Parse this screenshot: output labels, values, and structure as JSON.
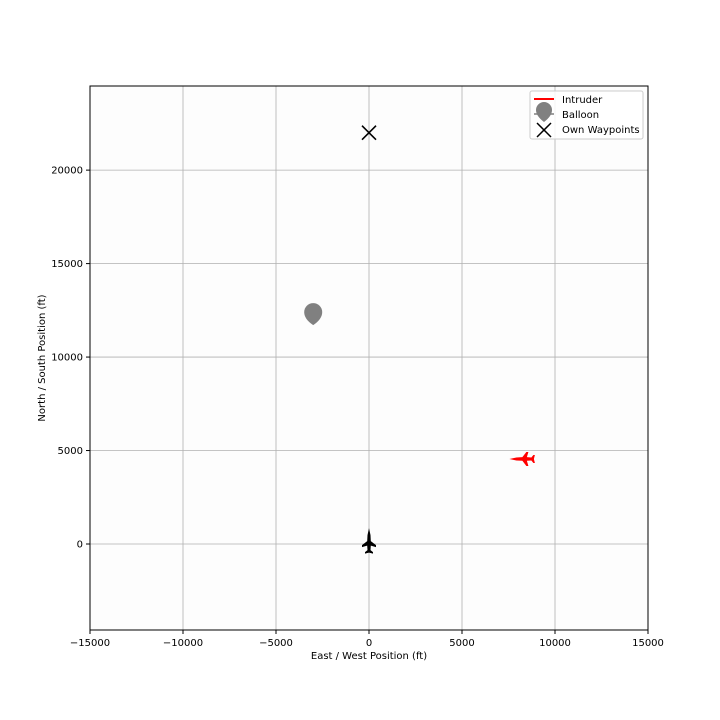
{
  "chart_data": {
    "type": "scatter",
    "title": "",
    "xlabel": "East / West Position (ft)",
    "ylabel": "North / South Position (ft)",
    "xlim": [
      -15000,
      15000
    ],
    "ylim": [
      -4600,
      24500
    ],
    "xticks": [
      -15000,
      -10000,
      -5000,
      0,
      5000,
      10000,
      15000
    ],
    "yticks": [
      0,
      5000,
      10000,
      15000,
      20000
    ],
    "grid": true,
    "legend_position": "top-right",
    "background": "#fdfdfd",
    "series": [
      {
        "name": "Intruder",
        "marker": "aircraft-icon",
        "color": "#ff0000",
        "heading": "west",
        "points": [
          {
            "x": 8300,
            "y": 4550
          }
        ]
      },
      {
        "name": "Balloon",
        "marker": "balloon-icon",
        "color": "#808080",
        "points": [
          {
            "x": -3000,
            "y": 12300
          }
        ]
      },
      {
        "name": "Own Waypoints",
        "marker": "x-marker",
        "color": "#000000",
        "points": [
          {
            "x": 0,
            "y": 22000
          }
        ]
      },
      {
        "marker": "aircraft-icon",
        "color": "#000000",
        "heading": "north",
        "points": [
          {
            "x": 0,
            "y": 100
          }
        ]
      }
    ]
  }
}
